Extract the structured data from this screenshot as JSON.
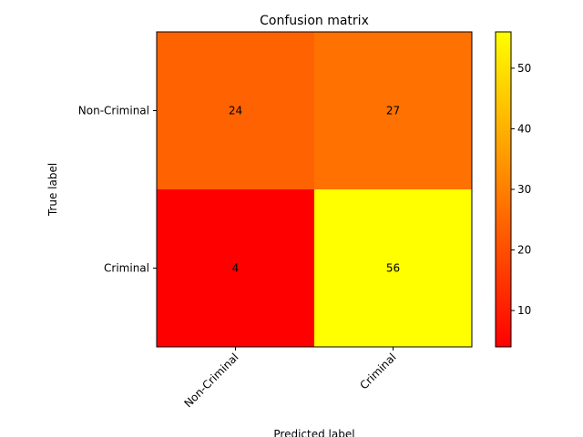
{
  "chart_data": {
    "type": "heatmap",
    "title": "Confusion matrix",
    "xlabel": "Predicted label",
    "ylabel": "True label",
    "x_categories": [
      "Non-Criminal",
      "Criminal"
    ],
    "y_categories": [
      "Non-Criminal",
      "Criminal"
    ],
    "values": [
      [
        24,
        27
      ],
      [
        4,
        56
      ]
    ],
    "colormap": "autumn",
    "colormap_low_color": "#ff0000",
    "colormap_high_color": "#ffff00",
    "value_range": [
      4,
      56
    ],
    "colorbar_ticks": [
      10,
      20,
      30,
      40,
      50
    ],
    "x_tick_rotation_deg": 45
  }
}
